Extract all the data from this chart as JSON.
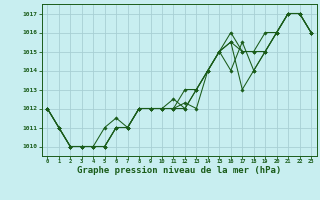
{
  "bg_color": "#c8eef0",
  "grid_color": "#a8cfd4",
  "line_color": "#1a5c1a",
  "marker_color": "#1a5c1a",
  "xlabel": "Graphe pression niveau de la mer (hPa)",
  "xlabel_fontsize": 6.5,
  "ylim": [
    1009.5,
    1017.5
  ],
  "xlim": [
    -0.5,
    23.5
  ],
  "yticks": [
    1010,
    1011,
    1012,
    1013,
    1014,
    1015,
    1016,
    1017
  ],
  "xticks": [
    0,
    1,
    2,
    3,
    4,
    5,
    6,
    7,
    8,
    9,
    10,
    11,
    12,
    13,
    14,
    15,
    16,
    17,
    18,
    19,
    20,
    21,
    22,
    23
  ],
  "line1_x": [
    0,
    1,
    2,
    3,
    4,
    5,
    6,
    7,
    8,
    9,
    10,
    11,
    12,
    13,
    14,
    15,
    16,
    17,
    18,
    19,
    20,
    21,
    22,
    23
  ],
  "line1_y": [
    1012,
    1011,
    1010,
    1010,
    1010,
    1010,
    1011,
    1011,
    1012,
    1012,
    1012,
    1012,
    1012.3,
    1012,
    1014,
    1015,
    1016,
    1015,
    1015,
    1015,
    1016,
    1017,
    1017,
    1016
  ],
  "line2_x": [
    0,
    1,
    2,
    3,
    4,
    5,
    6,
    7,
    8,
    9,
    10,
    11,
    12,
    13,
    14,
    15,
    16,
    17,
    18,
    19,
    20,
    21,
    22,
    23
  ],
  "line2_y": [
    1012,
    1011,
    1010,
    1010,
    1010,
    1011,
    1011.5,
    1011,
    1012,
    1012,
    1012,
    1012,
    1013,
    1013,
    1014,
    1015,
    1015.5,
    1013,
    1014,
    1015,
    1016,
    1017,
    1017,
    1016
  ],
  "line3_x": [
    0,
    1,
    2,
    3,
    4,
    5,
    6,
    7,
    8,
    9,
    10,
    11,
    12,
    13,
    14,
    15,
    16,
    17,
    18,
    19,
    20,
    21,
    22,
    23
  ],
  "line3_y": [
    1012,
    1011,
    1010,
    1010,
    1010,
    1010,
    1011,
    1011,
    1012,
    1012,
    1012,
    1012.5,
    1012,
    1013,
    1014,
    1015,
    1015.5,
    1015,
    1015,
    1016,
    1016,
    1017,
    1017,
    1016
  ],
  "line4_x": [
    0,
    1,
    2,
    3,
    4,
    5,
    6,
    7,
    8,
    9,
    10,
    11,
    12,
    13,
    14,
    15,
    16,
    17,
    18,
    19,
    20,
    21,
    22,
    23
  ],
  "line4_y": [
    1012,
    1011,
    1010,
    1010,
    1010,
    1010,
    1011,
    1011,
    1012,
    1012,
    1012,
    1012,
    1012,
    1013,
    1014,
    1015,
    1014,
    1015.5,
    1014,
    1015,
    1016,
    1017,
    1017,
    1016
  ]
}
